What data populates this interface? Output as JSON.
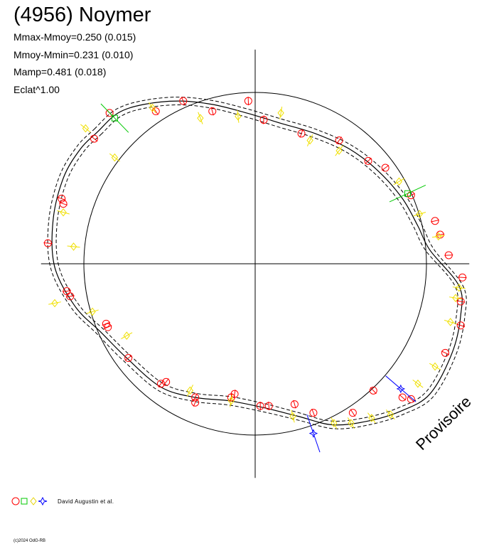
{
  "header": {
    "title": "(4956) Noymer",
    "stats": [
      "Mmax-Mmoy=0.250 (0.015)",
      "Mmoy-Mmin=0.231 (0.010)",
      "Mamp=0.481 (0.018)",
      "Eclat^1.00"
    ]
  },
  "legend": {
    "symbols": [
      "circle",
      "square",
      "diamond",
      "star"
    ],
    "colors": [
      "#ff0000",
      "#00c800",
      "#ffff00",
      "#0000ff"
    ],
    "credit": "David Augustin et al."
  },
  "footer": {
    "copyright": "(c)2024 OdG-RB"
  },
  "watermark": "Provisoire",
  "chart_data": {
    "type": "scatter",
    "title": "(4956) Noymer",
    "projection": "polar",
    "reference_circle_radius": 1.0,
    "axes": {
      "x_range": [
        -1.25,
        1.25
      ],
      "y_range": [
        -1.25,
        1.25
      ],
      "crosshair": true
    },
    "curve": {
      "points": [
        [
          -0.92,
          0.77
        ],
        [
          -0.8,
          0.88
        ],
        [
          -0.65,
          0.93
        ],
        [
          -0.45,
          0.95
        ],
        [
          -0.25,
          0.93
        ],
        [
          -0.05,
          0.88
        ],
        [
          0.15,
          0.82
        ],
        [
          0.35,
          0.76
        ],
        [
          0.55,
          0.67
        ],
        [
          0.72,
          0.54
        ],
        [
          0.86,
          0.38
        ],
        [
          0.95,
          0.22
        ],
        [
          1.02,
          0.08
        ],
        [
          1.19,
          -0.13
        ],
        [
          1.2,
          -0.3
        ],
        [
          1.15,
          -0.52
        ],
        [
          1.02,
          -0.76
        ],
        [
          0.85,
          -0.86
        ],
        [
          0.65,
          -0.92
        ],
        [
          0.45,
          -0.94
        ],
        [
          0.25,
          -0.89
        ],
        [
          0.05,
          -0.84
        ],
        [
          -0.15,
          -0.8
        ],
        [
          -0.35,
          -0.78
        ],
        [
          -0.55,
          -0.72
        ],
        [
          -0.75,
          -0.55
        ],
        [
          -0.9,
          -0.4
        ],
        [
          -1.05,
          -0.25
        ],
        [
          -1.17,
          -0.02
        ],
        [
          -1.18,
          0.25
        ],
        [
          -1.12,
          0.5
        ],
        [
          -1.02,
          0.67
        ]
      ],
      "envelope_offset": 0.025
    },
    "series": [
      {
        "symbol": "circle",
        "color": "#ff0000",
        "points": [
          [
            -1.21,
            0.12
          ],
          [
            -1.12,
            0.35
          ],
          [
            -1.13,
            0.38
          ],
          [
            -1.1,
            -0.16
          ],
          [
            -1.08,
            -0.19
          ],
          [
            -0.94,
            0.73
          ],
          [
            -0.85,
            0.88
          ],
          [
            -0.58,
            0.89
          ],
          [
            -0.42,
            0.95
          ],
          [
            -0.25,
            0.89
          ],
          [
            -0.04,
            0.95
          ],
          [
            0.05,
            0.84
          ],
          [
            0.27,
            0.76
          ],
          [
            0.49,
            0.72
          ],
          [
            0.66,
            0.6
          ],
          [
            0.76,
            0.56
          ],
          [
            0.91,
            0.4
          ],
          [
            1.05,
            0.25
          ],
          [
            1.08,
            0.17
          ],
          [
            1.13,
            0.05
          ],
          [
            1.21,
            -0.08
          ],
          [
            1.2,
            -0.22
          ],
          [
            1.2,
            -0.36
          ],
          [
            1.11,
            -0.52
          ],
          [
            0.69,
            -0.74
          ],
          [
            0.86,
            -0.78
          ],
          [
            0.91,
            -0.79
          ],
          [
            0.57,
            -0.87
          ],
          [
            0.34,
            -0.87
          ],
          [
            0.23,
            -0.82
          ],
          [
            0.08,
            -0.83
          ],
          [
            0.03,
            -0.83
          ],
          [
            -0.12,
            -0.76
          ],
          [
            -0.14,
            -0.78
          ],
          [
            -0.35,
            -0.78
          ],
          [
            -0.35,
            -0.81
          ],
          [
            -0.52,
            -0.69
          ],
          [
            -0.55,
            -0.7
          ],
          [
            -0.74,
            -0.55
          ],
          [
            -0.87,
            -0.35
          ],
          [
            -0.86,
            -0.37
          ]
        ]
      },
      {
        "symbol": "square",
        "color": "#00c800",
        "points": [
          [
            -0.82,
            0.85
          ],
          [
            0.89,
            0.41
          ]
        ]
      },
      {
        "symbol": "diamond",
        "color": "#ffff00",
        "points": [
          [
            -1.12,
            0.3
          ],
          [
            -0.99,
            0.79
          ],
          [
            -0.6,
            0.91
          ],
          [
            -0.32,
            0.85
          ],
          [
            -0.1,
            0.86
          ],
          [
            0.15,
            0.88
          ],
          [
            0.32,
            0.72
          ],
          [
            0.49,
            0.66
          ],
          [
            0.84,
            0.48
          ],
          [
            0.96,
            0.29
          ],
          [
            1.07,
            0.16
          ],
          [
            1.19,
            -0.14
          ],
          [
            1.17,
            -0.2
          ],
          [
            1.14,
            -0.34
          ],
          [
            1.05,
            -0.6
          ],
          [
            0.95,
            -0.7
          ],
          [
            0.79,
            -0.88
          ],
          [
            0.68,
            -0.9
          ],
          [
            0.56,
            -0.93
          ],
          [
            0.46,
            -0.93
          ],
          [
            0.22,
            -0.89
          ],
          [
            -0.14,
            -0.8
          ],
          [
            -0.38,
            -0.74
          ],
          [
            -0.75,
            -0.42
          ],
          [
            -0.95,
            -0.28
          ],
          [
            -1.17,
            -0.23
          ],
          [
            -1.06,
            0.1
          ],
          [
            -0.82,
            0.62
          ]
        ]
      },
      {
        "symbol": "star",
        "color": "#0000ff",
        "points": [
          [
            0.85,
            -0.73
          ],
          [
            0.34,
            -0.99
          ]
        ]
      }
    ]
  }
}
